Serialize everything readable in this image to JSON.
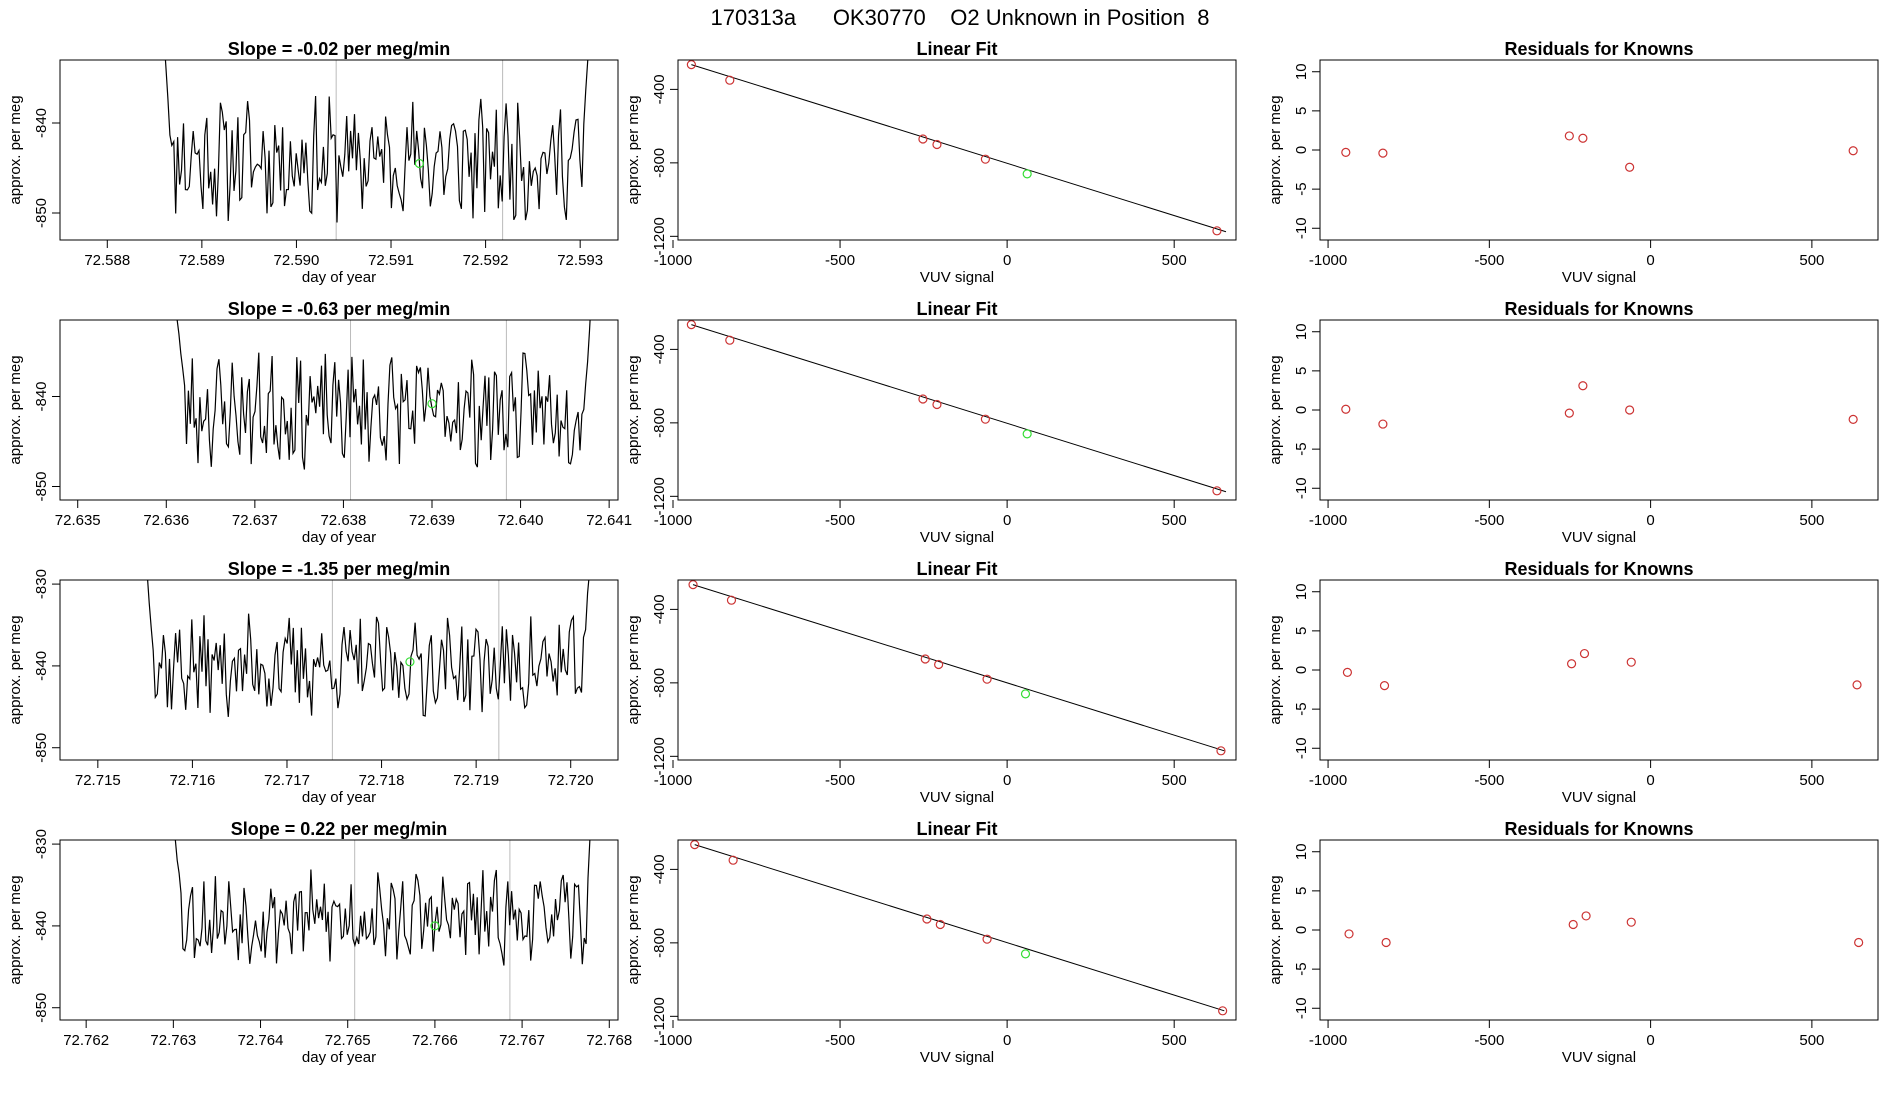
{
  "page": {
    "title": "170313a      OK30770    O2 Unknown in Position  8"
  },
  "chart_data": [
    {
      "type": "line",
      "title": "Slope =  -0.02  per meg/min",
      "xlabel": "day of year",
      "ylabel": "approx. per meg",
      "xlim": [
        72.5875,
        72.5934
      ],
      "ylim": [
        -853,
        -833
      ],
      "xticks": [
        72.588,
        72.589,
        72.59,
        72.591,
        72.592,
        72.593
      ],
      "xtick_labels": [
        "72.588",
        "72.589",
        "72.590",
        "72.591",
        "72.592",
        "72.593"
      ],
      "yticks": [
        -850,
        -840
      ],
      "ytick_labels": [
        "-850",
        "-840"
      ],
      "vlines": [
        72.59042,
        72.59218
      ],
      "highlight_point": {
        "x": 72.5913,
        "y": -844.5,
        "color": "#33dd33"
      },
      "line_color": "#000000",
      "series": {
        "x_start": 72.5886,
        "x_end": 72.5931,
        "start_level": -830,
        "base": -844,
        "amp": 5.5,
        "end_level": -830,
        "entry_points": 4,
        "exit_points": 4,
        "count": 220,
        "seed": 11
      }
    },
    {
      "type": "scatter",
      "title": "Linear Fit",
      "xlabel": "VUV signal",
      "ylabel": "approx. per meg",
      "xlim": [
        -985,
        685
      ],
      "ylim": [
        -1220,
        -240
      ],
      "xticks": [
        -1000,
        -500,
        0,
        500
      ],
      "xtick_labels": [
        "-1000",
        "-500",
        "0",
        "500"
      ],
      "yticks": [
        -1200,
        -800,
        -400
      ],
      "ytick_labels": [
        "-1200",
        "-800",
        "-400"
      ],
      "points_x": [
        -945,
        -830,
        -252,
        -210,
        -65,
        628
      ],
      "points_y": [
        -265,
        -350,
        -670,
        -700,
        -780,
        -1170
      ],
      "point_color": "#cc3333",
      "unknown_point": {
        "x": 60,
        "y": -860,
        "color": "#33dd33"
      },
      "fit_line": {
        "x": [
          -945,
          655
        ],
        "y": [
          -265,
          -1175
        ]
      }
    },
    {
      "type": "scatter",
      "title": "Residuals for Knowns",
      "xlabel": "VUV signal",
      "ylabel": "approx. per meg",
      "xlim": [
        -1025,
        705
      ],
      "ylim": [
        -11.5,
        11.5
      ],
      "xticks": [
        -1000,
        -500,
        0,
        500
      ],
      "xtick_labels": [
        "-1000",
        "-500",
        "0",
        "500"
      ],
      "yticks": [
        -10,
        -5,
        0,
        5,
        10
      ],
      "ytick_labels": [
        "-10",
        "-5",
        "0",
        "5",
        "10"
      ],
      "points_x": [
        -945,
        -830,
        -252,
        -210,
        -65,
        628
      ],
      "points_y": [
        -0.3,
        -0.4,
        1.8,
        1.5,
        -2.2,
        -0.1
      ],
      "point_color": "#cc3333"
    },
    {
      "type": "line",
      "title": "Slope =  -0.63  per meg/min",
      "xlabel": "day of year",
      "ylabel": "approx. per meg",
      "xlim": [
        72.6348,
        72.6411
      ],
      "ylim": [
        -851.5,
        -831.5
      ],
      "xticks": [
        72.635,
        72.636,
        72.637,
        72.638,
        72.639,
        72.64,
        72.641
      ],
      "xtick_labels": [
        "72.635",
        "72.636",
        "72.637",
        "72.638",
        "72.639",
        "72.640",
        "72.641"
      ],
      "yticks": [
        -850,
        -840
      ],
      "ytick_labels": [
        "-850",
        "-840"
      ],
      "vlines": [
        72.63808,
        72.63984
      ],
      "highlight_point": {
        "x": 72.639,
        "y": -840.8,
        "color": "#33dd33"
      },
      "line_color": "#000000",
      "series": {
        "x_start": 72.6361,
        "x_end": 72.6408,
        "start_level": -829,
        "base": -841.5,
        "amp": 5,
        "end_level": -829,
        "entry_points": 6,
        "exit_points": 4,
        "count": 220,
        "seed": 23
      }
    },
    {
      "type": "scatter",
      "title": "Linear Fit",
      "xlabel": "VUV signal",
      "ylabel": "approx. per meg",
      "xlim": [
        -985,
        685
      ],
      "ylim": [
        -1220,
        -240
      ],
      "xticks": [
        -1000,
        -500,
        0,
        500
      ],
      "xtick_labels": [
        "-1000",
        "-500",
        "0",
        "500"
      ],
      "yticks": [
        -1200,
        -800,
        -400
      ],
      "ytick_labels": [
        "-1200",
        "-800",
        "-400"
      ],
      "points_x": [
        -945,
        -830,
        -252,
        -210,
        -65,
        628
      ],
      "points_y": [
        -265,
        -350,
        -670,
        -700,
        -780,
        -1170
      ],
      "point_color": "#cc3333",
      "unknown_point": {
        "x": 60,
        "y": -860,
        "color": "#33dd33"
      },
      "fit_line": {
        "x": [
          -945,
          655
        ],
        "y": [
          -265,
          -1175
        ]
      }
    },
    {
      "type": "scatter",
      "title": "Residuals for Knowns",
      "xlabel": "VUV signal",
      "ylabel": "approx. per meg",
      "xlim": [
        -1025,
        705
      ],
      "ylim": [
        -11.5,
        11.5
      ],
      "xticks": [
        -1000,
        -500,
        0,
        500
      ],
      "xtick_labels": [
        "-1000",
        "-500",
        "0",
        "500"
      ],
      "yticks": [
        -10,
        -5,
        0,
        5,
        10
      ],
      "ytick_labels": [
        "-10",
        "-5",
        "0",
        "5",
        "10"
      ],
      "points_x": [
        -945,
        -830,
        -252,
        -210,
        -65,
        628
      ],
      "points_y": [
        0.1,
        -1.8,
        -0.4,
        3.1,
        0.0,
        -1.2
      ],
      "point_color": "#cc3333"
    },
    {
      "type": "line",
      "title": "Slope =  -1.35  per meg/min",
      "xlabel": "day of year",
      "ylabel": "approx. per meg",
      "xlim": [
        72.7146,
        72.7205
      ],
      "ylim": [
        -851.5,
        -829.5
      ],
      "xticks": [
        72.715,
        72.716,
        72.717,
        72.718,
        72.719,
        72.72
      ],
      "xtick_labels": [
        "72.715",
        "72.716",
        "72.717",
        "72.718",
        "72.719",
        "72.720"
      ],
      "yticks": [
        -850,
        -840,
        -830
      ],
      "ytick_labels": [
        "-850",
        "-840",
        "-830"
      ],
      "vlines": [
        72.71748,
        72.71924
      ],
      "highlight_point": {
        "x": 72.7183,
        "y": -839.5,
        "color": "#33dd33"
      },
      "line_color": "#000000",
      "series": {
        "x_start": 72.7155,
        "x_end": 72.7202,
        "start_level": -826,
        "base": -840,
        "amp": 5,
        "end_level": -828,
        "entry_points": 5,
        "exit_points": 3,
        "count": 220,
        "seed": 37
      }
    },
    {
      "type": "scatter",
      "title": "Linear Fit",
      "xlabel": "VUV signal",
      "ylabel": "approx. per meg",
      "xlim": [
        -985,
        685
      ],
      "ylim": [
        -1220,
        -240
      ],
      "xticks": [
        -1000,
        -500,
        0,
        500
      ],
      "xtick_labels": [
        "-1000",
        "-500",
        "0",
        "500"
      ],
      "yticks": [
        -1200,
        -800,
        -400
      ],
      "ytick_labels": [
        "-1200",
        "-800",
        "-400"
      ],
      "points_x": [
        -940,
        -825,
        -245,
        -205,
        -60,
        640
      ],
      "points_y": [
        -265,
        -350,
        -670,
        -700,
        -780,
        -1170
      ],
      "point_color": "#cc3333",
      "unknown_point": {
        "x": 55,
        "y": -860,
        "color": "#33dd33"
      },
      "fit_line": {
        "x": [
          -940,
          650
        ],
        "y": [
          -265,
          -1170
        ]
      }
    },
    {
      "type": "scatter",
      "title": "Residuals for Knowns",
      "xlabel": "VUV signal",
      "ylabel": "approx. per meg",
      "xlim": [
        -1025,
        705
      ],
      "ylim": [
        -11.5,
        11.5
      ],
      "xticks": [
        -1000,
        -500,
        0,
        500
      ],
      "xtick_labels": [
        "-1000",
        "-500",
        "0",
        "500"
      ],
      "yticks": [
        -10,
        -5,
        0,
        5,
        10
      ],
      "ytick_labels": [
        "-10",
        "-5",
        "0",
        "5",
        "10"
      ],
      "points_x": [
        -940,
        -825,
        -245,
        -205,
        -60,
        640
      ],
      "points_y": [
        -0.3,
        -2.0,
        0.8,
        2.1,
        1.0,
        -1.9
      ],
      "point_color": "#cc3333"
    },
    {
      "type": "line",
      "title": "Slope =  0.22  per meg/min",
      "xlabel": "day of year",
      "ylabel": "approx. per meg",
      "xlim": [
        72.7617,
        72.7681
      ],
      "ylim": [
        -851.5,
        -829.5
      ],
      "xticks": [
        72.762,
        72.763,
        72.764,
        72.765,
        72.766,
        72.767,
        72.768
      ],
      "xtick_labels": [
        "72.762",
        "72.763",
        "72.764",
        "72.765",
        "72.766",
        "72.767",
        "72.768"
      ],
      "yticks": [
        -850,
        -840,
        -830
      ],
      "ytick_labels": [
        "-850",
        "-840",
        "-830"
      ],
      "vlines": [
        72.76508,
        72.76686
      ],
      "highlight_point": {
        "x": 72.766,
        "y": -840,
        "color": "#33dd33"
      },
      "line_color": "#000000",
      "series": {
        "x_start": 72.763,
        "x_end": 72.7678,
        "start_level": -826,
        "base": -839,
        "amp": 4.5,
        "end_level": -826,
        "entry_points": 5,
        "exit_points": 3,
        "count": 220,
        "seed": 53
      }
    },
    {
      "type": "scatter",
      "title": "Linear Fit",
      "xlabel": "VUV signal",
      "ylabel": "approx. per meg",
      "xlim": [
        -985,
        685
      ],
      "ylim": [
        -1220,
        -240
      ],
      "xticks": [
        -1000,
        -500,
        0,
        500
      ],
      "xtick_labels": [
        "-1000",
        "-500",
        "0",
        "500"
      ],
      "yticks": [
        -1200,
        -800,
        -400
      ],
      "ytick_labels": [
        "-1200",
        "-800",
        "-400"
      ],
      "points_x": [
        -935,
        -820,
        -240,
        -200,
        -60,
        645
      ],
      "points_y": [
        -265,
        -350,
        -670,
        -700,
        -780,
        -1170
      ],
      "point_color": "#cc3333",
      "unknown_point": {
        "x": 55,
        "y": -860,
        "color": "#33dd33"
      },
      "fit_line": {
        "x": [
          -935,
          650
        ],
        "y": [
          -265,
          -1170
        ]
      }
    },
    {
      "type": "scatter",
      "title": "Residuals for Knowns",
      "xlabel": "VUV signal",
      "ylabel": "approx. per meg",
      "xlim": [
        -1025,
        705
      ],
      "ylim": [
        -11.5,
        11.5
      ],
      "xticks": [
        -1000,
        -500,
        0,
        500
      ],
      "xtick_labels": [
        "-1000",
        "-500",
        "0",
        "500"
      ],
      "yticks": [
        -10,
        -5,
        0,
        5,
        10
      ],
      "ytick_labels": [
        "-10",
        "-5",
        "0",
        "5",
        "10"
      ],
      "points_x": [
        -935,
        -820,
        -240,
        -200,
        -60,
        645
      ],
      "points_y": [
        -0.5,
        -1.6,
        0.7,
        1.8,
        1.0,
        -1.6
      ],
      "point_color": "#cc3333"
    }
  ]
}
